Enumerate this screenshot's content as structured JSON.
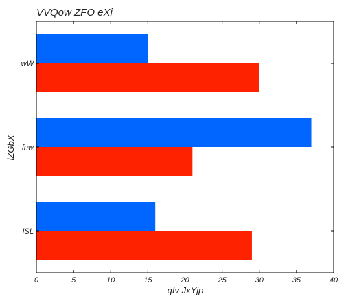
{
  "chart_data": {
    "type": "bar",
    "orientation": "horizontal",
    "title": "VVQow ZFO eXi",
    "xlabel": "qIv JxYjp",
    "ylabel": "lZGbX",
    "categories": [
      "ISL",
      "fnw",
      "wW"
    ],
    "series": [
      {
        "color": "#ff2200",
        "values": [
          29,
          21,
          30
        ]
      },
      {
        "color": "#0066ff",
        "values": [
          16,
          37,
          15
        ]
      }
    ],
    "xlim": [
      0,
      40
    ],
    "xticks": [
      0,
      5,
      10,
      15,
      20,
      25,
      30,
      35,
      40
    ],
    "grid": false,
    "legend": "none"
  }
}
